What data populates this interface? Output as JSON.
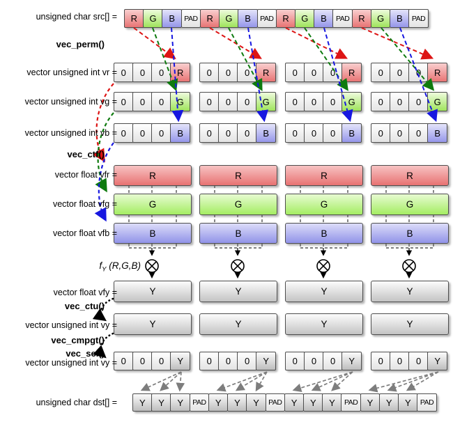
{
  "labels": {
    "src": "unsigned char src[] =",
    "vec_perm": "vec_perm()",
    "vr": "vector unsigned int vr =",
    "vg": "vector unsigned int vg =",
    "vb": "vector unsigned int vb =",
    "vec_ctf": "vec_ctf()",
    "vfr": "vector float vfr =",
    "vfg": "vector float vfg =",
    "vfb": "vector float vfb =",
    "fy_name": "f",
    "fy_sub": "Y",
    "fy_args": "(R,G,B)",
    "vfy": "vector float vfy =",
    "vec_ctu": "vec_ctu()",
    "vy": "vector unsigned int vy =",
    "vec_cmpgt": "vec_cmpgt()",
    "vec_sel": "vec_sel()",
    "vy2": "vector unsigned int vy =",
    "dst": "unsigned char dst[] ="
  },
  "rows": {
    "src": {
      "cells": [
        "R",
        "G",
        "B",
        "PAD",
        "R",
        "G",
        "B",
        "PAD",
        "R",
        "G",
        "B",
        "PAD",
        "R",
        "G",
        "B",
        "PAD"
      ]
    },
    "vr": {
      "groups": [
        [
          "0",
          "0",
          "0",
          "R"
        ],
        [
          "0",
          "0",
          "0",
          "R"
        ],
        [
          "0",
          "0",
          "0",
          "R"
        ],
        [
          "0",
          "0",
          "0",
          "R"
        ]
      ]
    },
    "vg": {
      "groups": [
        [
          "0",
          "0",
          "0",
          "G"
        ],
        [
          "0",
          "0",
          "0",
          "G"
        ],
        [
          "0",
          "0",
          "0",
          "G"
        ],
        [
          "0",
          "0",
          "0",
          "G"
        ]
      ]
    },
    "vb": {
      "groups": [
        [
          "0",
          "0",
          "0",
          "B"
        ],
        [
          "0",
          "0",
          "0",
          "B"
        ],
        [
          "0",
          "0",
          "0",
          "B"
        ],
        [
          "0",
          "0",
          "0",
          "B"
        ]
      ]
    },
    "vfr": {
      "values": [
        "R",
        "R",
        "R",
        "R"
      ]
    },
    "vfg": {
      "values": [
        "G",
        "G",
        "G",
        "G"
      ]
    },
    "vfb": {
      "values": [
        "B",
        "B",
        "B",
        "B"
      ]
    },
    "vfy": {
      "values": [
        "Y",
        "Y",
        "Y",
        "Y"
      ]
    },
    "vy": {
      "values": [
        "Y",
        "Y",
        "Y",
        "Y"
      ]
    },
    "vy2": {
      "groups": [
        [
          "0",
          "0",
          "0",
          "Y"
        ],
        [
          "0",
          "0",
          "0",
          "Y"
        ],
        [
          "0",
          "0",
          "0",
          "Y"
        ],
        [
          "0",
          "0",
          "0",
          "Y"
        ]
      ]
    },
    "dst": {
      "cells": [
        "Y",
        "Y",
        "Y",
        "PAD",
        "Y",
        "Y",
        "Y",
        "PAD",
        "Y",
        "Y",
        "Y",
        "PAD",
        "Y",
        "Y",
        "Y",
        "PAD"
      ]
    }
  },
  "icons": {
    "multiply_circle": "circle-with-x-multiply-operator"
  },
  "colors": {
    "red_cell": "#e87474",
    "green_cell": "#9fe45c",
    "blue_cell": "#9596ea",
    "gray_cell": "#bdbdbd",
    "arrow_red": "#dd1414",
    "arrow_green": "#0e7a0e",
    "arrow_blue": "#1717e0",
    "arrow_gray": "#7d7d7d",
    "arrow_black": "#000000",
    "cell_border": "#4d4d4d"
  }
}
